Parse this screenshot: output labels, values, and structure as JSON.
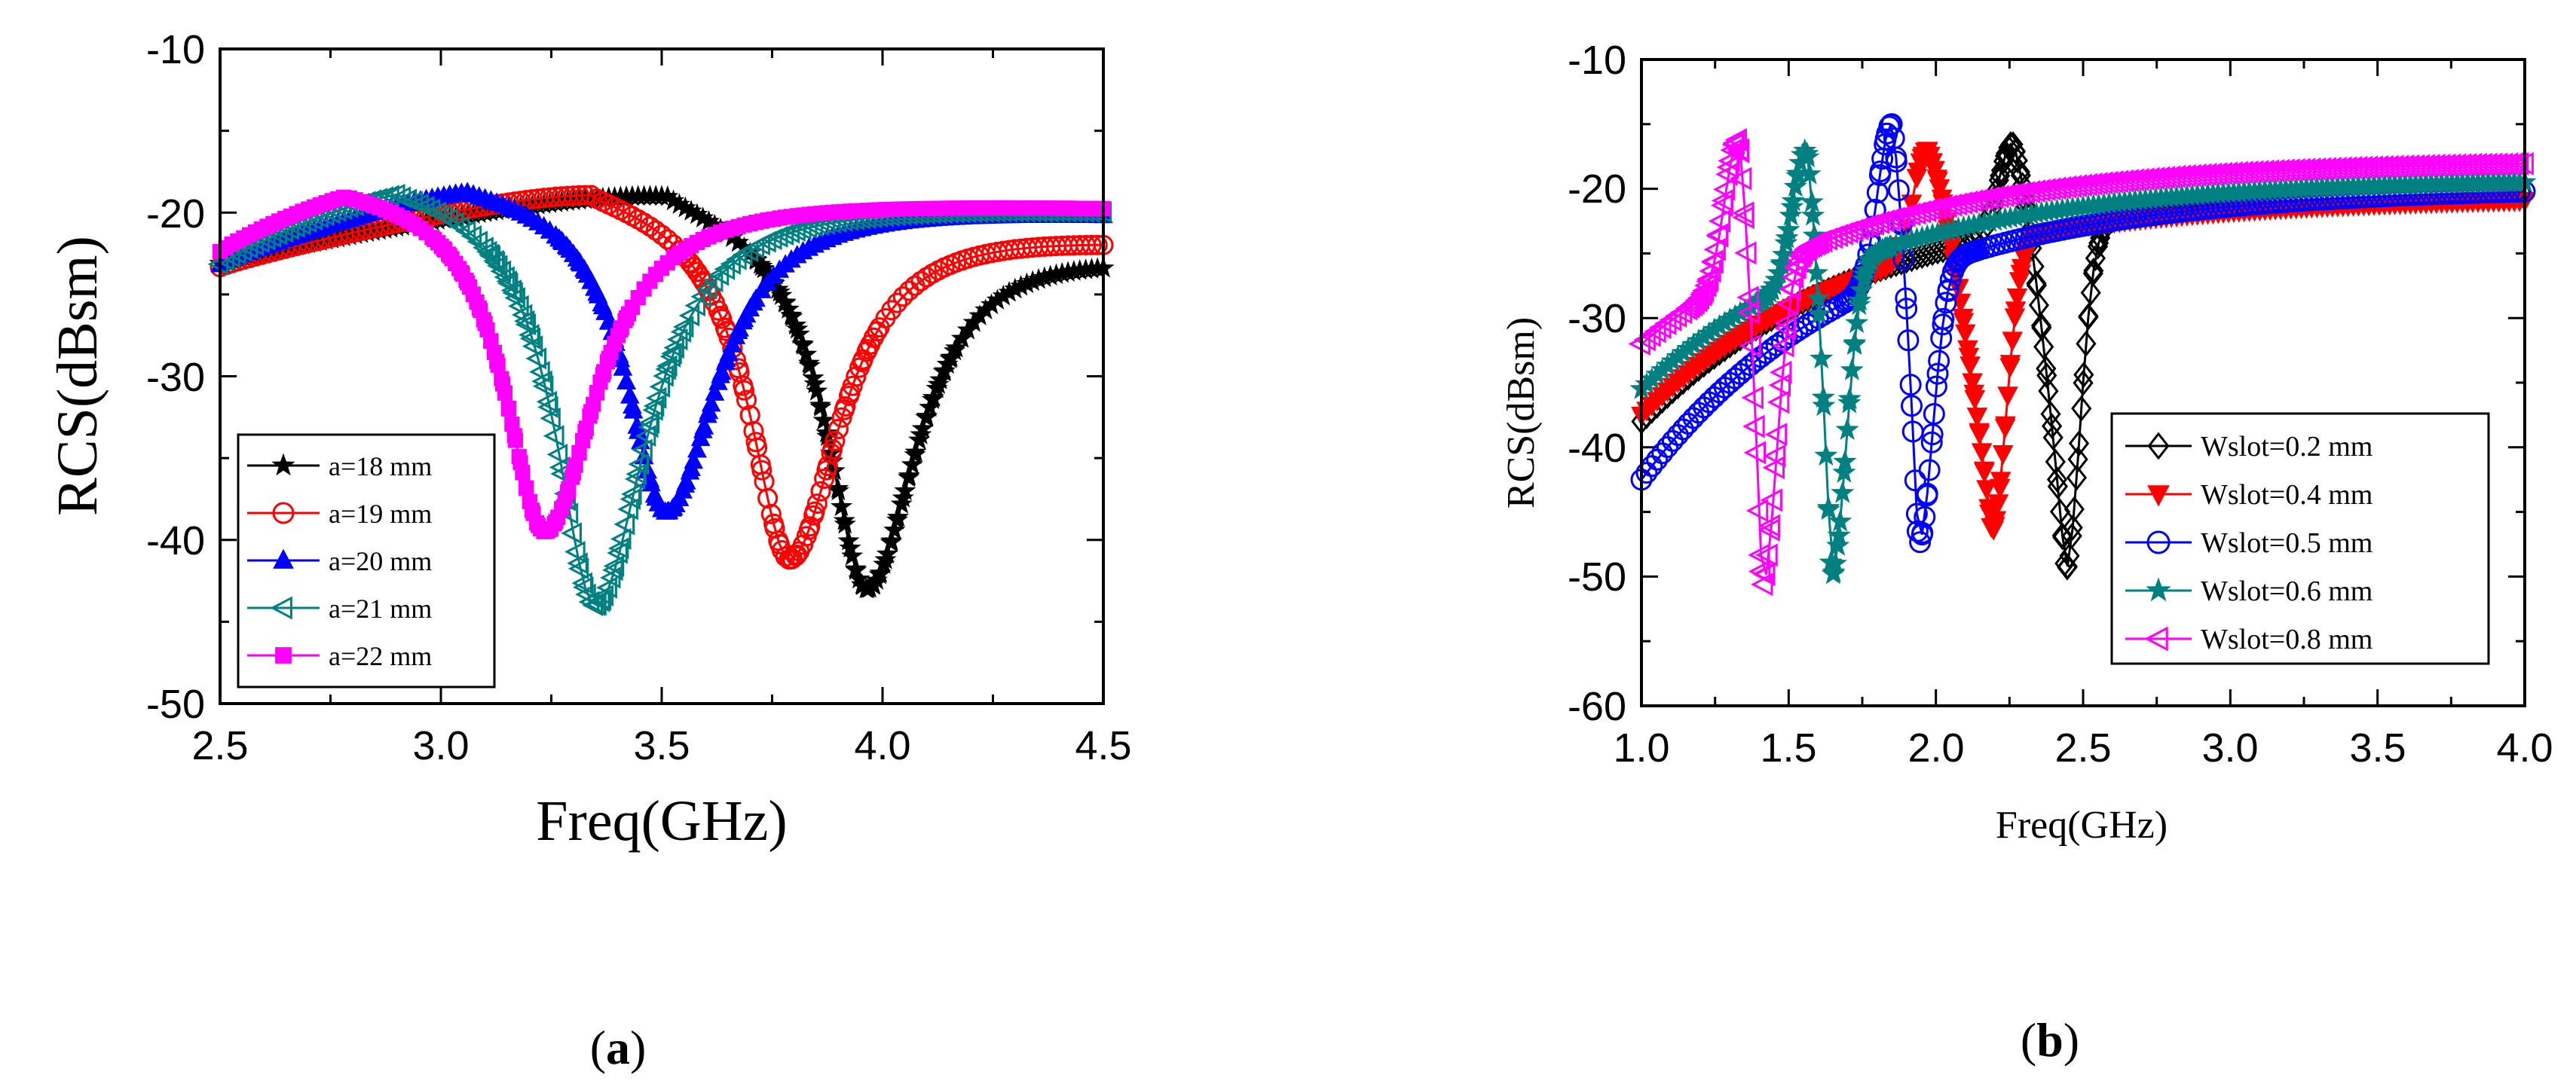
{
  "chart_data": [
    {
      "type": "scatter",
      "id": "a",
      "caption": "a",
      "xlabel": "Freq(GHz)",
      "ylabel": "RCS(dBsm)",
      "xlim": [
        2.5,
        4.5
      ],
      "ylim": [
        -50,
        -10
      ],
      "xticks": [
        2.5,
        3.0,
        3.5,
        4.0,
        4.5
      ],
      "xtick_labels": [
        "2.5",
        "3.0",
        "3.5",
        "4.0",
        "4.5"
      ],
      "yticks": [
        -50,
        -40,
        -30,
        -20,
        -10
      ],
      "ytick_labels": [
        "-50",
        "-40",
        "-30",
        "-20",
        "-10"
      ],
      "legend_position": "bottom-left",
      "series": [
        {
          "name": "a=18 mm",
          "marker": "star-filled",
          "color": "#000000",
          "f0": 3.965,
          "min": -43.0,
          "peak": -17.6,
          "left": -23.0,
          "right": -22.0
        },
        {
          "name": "a=19 mm",
          "marker": "circle-open",
          "color": "#ff0000",
          "f0": 3.79,
          "min": -41.2,
          "peak": -17.6,
          "left": -23.2,
          "right": -21.2
        },
        {
          "name": "a=20 mm",
          "marker": "triangle-up-filled",
          "color": "#0000ff",
          "f0": 3.51,
          "min": -38.3,
          "peak": -17.6,
          "left": -23.0,
          "right": -19.8
        },
        {
          "name": "a=21 mm",
          "marker": "triangle-left-open",
          "color": "#008080",
          "f0": 3.35,
          "min": -44.0,
          "peak": -17.4,
          "left": -22.8,
          "right": -19.6
        },
        {
          "name": "a=22 mm",
          "marker": "square-filled",
          "color": "#ff00ff",
          "f0": 3.235,
          "min": -39.5,
          "peak": -17.8,
          "left": -22.0,
          "right": -19.5
        }
      ]
    },
    {
      "type": "scatter",
      "id": "b",
      "caption": "b",
      "xlabel": "Freq(GHz)",
      "ylabel": "RCS(dBsm)",
      "xlim": [
        1.0,
        4.0
      ],
      "ylim": [
        -60,
        -10
      ],
      "xticks": [
        1.0,
        1.5,
        2.0,
        2.5,
        3.0,
        3.5,
        4.0
      ],
      "xtick_labels": [
        "1.0",
        "1.5",
        "2.0",
        "2.5",
        "3.0",
        "3.5",
        "4.0"
      ],
      "yticks": [
        -60,
        -50,
        -40,
        -30,
        -20,
        -10
      ],
      "ytick_labels": [
        "-60",
        "-50",
        "-40",
        "-30",
        "-20",
        "-10"
      ],
      "legend_position": "bottom-right",
      "series": [
        {
          "name": "Wslot=0.2 mm",
          "marker": "diamond-open",
          "color": "#000000",
          "f0": 2.44,
          "fp": 2.26,
          "min": -49.5,
          "peak": -16.5,
          "start": -38.0,
          "end": -20.2
        },
        {
          "name": "Wslot=0.4 mm",
          "marker": "triangle-down-filled",
          "color": "#ff0000",
          "f0": 2.19,
          "fp": 1.97,
          "min": -46.5,
          "peak": -17.0,
          "start": -37.5,
          "end": -20.6
        },
        {
          "name": "Wslot=0.5 mm",
          "marker": "circle-open",
          "color": "#0000ff",
          "f0": 1.94,
          "fp": 1.85,
          "min": -47.5,
          "peak": -15.0,
          "start": -42.5,
          "end": -19.8
        },
        {
          "name": "Wslot=0.6 mm",
          "marker": "star-filled",
          "color": "#008080",
          "f0": 1.645,
          "fp": 1.56,
          "min": -50.0,
          "peak": -17.0,
          "start": -35.5,
          "end": -19.2
        },
        {
          "name": "Wslot=0.8 mm",
          "marker": "triangle-left-open",
          "color": "#ff00ff",
          "f0": 1.41,
          "fp": 1.33,
          "min": -50.8,
          "peak": -16.2,
          "start": -32.0,
          "end": -17.8
        }
      ]
    }
  ]
}
